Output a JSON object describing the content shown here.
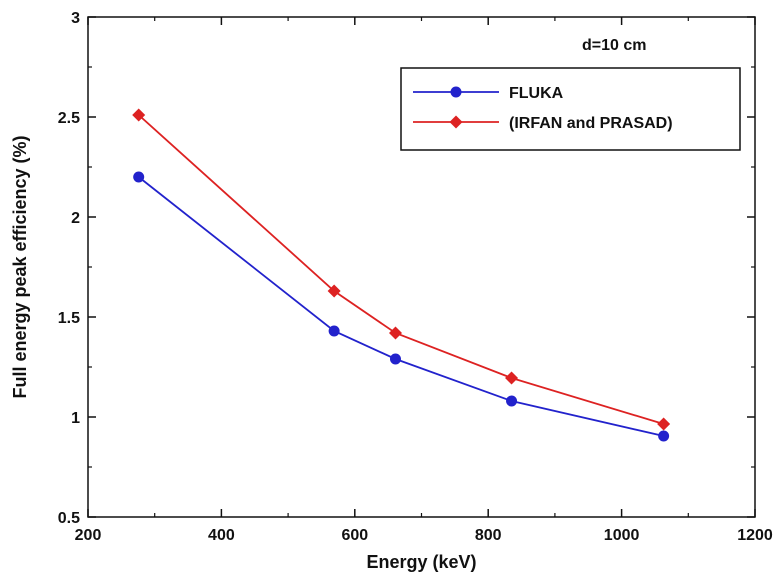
{
  "chart_data": {
    "type": "line",
    "title": "",
    "xlabel": "Energy (keV)",
    "ylabel": "Full energy peak efficiency (%)",
    "xlim": [
      200,
      1200
    ],
    "ylim": [
      0.5,
      3
    ],
    "x_ticks": [
      200,
      400,
      600,
      800,
      1000,
      1200
    ],
    "y_ticks": [
      0.5,
      1,
      1.5,
      2,
      2.5,
      3
    ],
    "x_tick_labels": [
      "200",
      "400",
      "600",
      "800",
      "1000",
      "1200"
    ],
    "y_tick_labels": [
      "0.5",
      "1",
      "1.5",
      "2",
      "2.5",
      "3"
    ],
    "grid": false,
    "legend_position": "top-right",
    "annotation": "d=10 cm",
    "series": [
      {
        "name": "FLUKA",
        "color": "#2222cc",
        "marker": "circle",
        "x": [
          276,
          569,
          661,
          835,
          1063
        ],
        "y": [
          2.2,
          1.43,
          1.29,
          1.08,
          0.905
        ]
      },
      {
        "name": "(IRFAN and PRASAD)",
        "color": "#dd2222",
        "marker": "diamond",
        "x": [
          276,
          569,
          661,
          835,
          1063
        ],
        "y": [
          2.51,
          1.63,
          1.42,
          1.195,
          0.965
        ]
      }
    ]
  }
}
